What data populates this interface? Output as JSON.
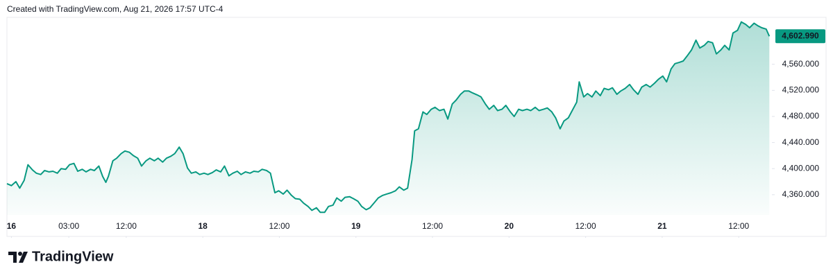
{
  "header": {
    "text": "Created with TradingView.com, Aug 21, 2026 17:57 UTC-4"
  },
  "chart_data": {
    "type": "area",
    "color": "#089981",
    "x": [
      -0.7,
      0,
      0.7,
      1.3,
      2,
      2.6,
      3.3,
      3.9,
      4.6,
      5.2,
      5.9,
      6.5,
      7.2,
      7.8,
      8.5,
      9.1,
      9.8,
      10.4,
      11.1,
      11.7,
      12.4,
      13,
      13.7,
      14.3,
      14.8,
      15.2,
      15.9,
      16.5,
      17.2,
      17.8,
      18.5,
      19.1,
      19.8,
      20.4,
      21.1,
      21.7,
      22.4,
      23,
      23.7,
      24.3,
      25,
      25.6,
      26.3,
      26.9,
      27.6,
      28.2,
      28.9,
      29.5,
      30.2,
      30.8,
      31.5,
      32.1,
      32.8,
      33.4,
      34.1,
      34.7,
      35.4,
      36,
      36.7,
      37.4,
      38,
      38.7,
      39.3,
      40,
      40.6,
      41.3,
      41.9,
      42.6,
      43.2,
      43.9,
      44.5,
      45.2,
      45.8,
      46.5,
      47.1,
      47.8,
      48.4,
      49.1,
      49.7,
      50.4,
      51,
      51.7,
      52.3,
      53,
      53.6,
      54.3,
      54.9,
      55.6,
      56.2,
      56.9,
      57.5,
      58.2,
      58.8,
      59.5,
      60.2,
      60.8,
      61.5,
      62.1,
      62.8,
      63.2,
      63.8,
      64.5,
      65.1,
      65.8,
      66.4,
      67.1,
      67.8,
      68.4,
      69.1,
      69.7,
      70.4,
      71,
      71.7,
      72.3,
      73,
      73.6,
      74.3,
      74.9,
      75.6,
      76.2,
      76.9,
      77.5,
      78.2,
      78.8,
      79.5,
      80.1,
      80.8,
      81.4,
      82.1,
      82.7,
      83.4,
      84,
      84.7,
      85.3,
      86,
      86.6,
      87.3,
      87.9,
      88.6,
      89,
      89.7,
      90.3,
      91,
      91.6,
      92.3,
      92.9,
      93.6,
      94.2,
      94.9,
      95.5,
      96.2,
      96.9,
      97.5,
      98.2,
      98.8,
      99.5,
      100.1,
      100.8,
      101.4,
      102.1,
      102.7,
      103.4,
      104,
      104.7,
      105.3,
      106,
      106.6,
      107.3,
      107.9,
      108.6,
      109.2,
      109.9,
      110.5,
      111.2,
      111.8,
      112.5,
      113.1,
      113.8,
      114.4,
      115.1,
      115.7,
      116.4,
      117,
      117.6,
      118.3,
      118.8
    ],
    "values": [
      4377,
      4374,
      4380,
      4370,
      4382,
      4406,
      4398,
      4393,
      4391,
      4397,
      4395,
      4396,
      4393,
      4400,
      4399,
      4406,
      4408,
      4396,
      4399,
      4395,
      4399,
      4397,
      4404,
      4388,
      4379,
      4388,
      4412,
      4416,
      4423,
      4427,
      4425,
      4420,
      4416,
      4404,
      4412,
      4416,
      4412,
      4416,
      4410,
      4416,
      4419,
      4423,
      4433,
      4423,
      4401,
      4393,
      4395,
      4391,
      4393,
      4391,
      4394,
      4398,
      4395,
      4404,
      4389,
      4393,
      4396,
      4391,
      4395,
      4393,
      4396,
      4395,
      4399,
      4397,
      4393,
      4363,
      4366,
      4361,
      4367,
      4359,
      4354,
      4353,
      4347,
      4342,
      4336,
      4340,
      4333,
      4333,
      4342,
      4344,
      4355,
      4350,
      4356,
      4357,
      4354,
      4350,
      4342,
      4337,
      4340,
      4348,
      4355,
      4359,
      4361,
      4363,
      4366,
      4372,
      4367,
      4370,
      4414,
      4458,
      4461,
      4487,
      4483,
      4491,
      4494,
      4489,
      4491,
      4476,
      4499,
      4505,
      4514,
      4519,
      4519,
      4516,
      4513,
      4510,
      4499,
      4491,
      4497,
      4489,
      4491,
      4497,
      4487,
      4480,
      4491,
      4489,
      4491,
      4489,
      4494,
      4489,
      4491,
      4493,
      4487,
      4478,
      4461,
      4473,
      4478,
      4489,
      4502,
      4533,
      4510,
      4515,
      4510,
      4519,
      4512,
      4523,
      4521,
      4524,
      4514,
      4519,
      4523,
      4529,
      4521,
      4514,
      4525,
      4529,
      4525,
      4531,
      4537,
      4542,
      4533,
      4553,
      4561,
      4563,
      4565,
      4574,
      4582,
      4597,
      4585,
      4589,
      4595,
      4593,
      4576,
      4582,
      4589,
      4582,
      4608,
      4612,
      4625,
      4621,
      4616,
      4623,
      4619,
      4616,
      4614,
      4602.99
    ],
    "last_value_label": "4,602.990",
    "xlim": [
      -0.7,
      119.2
    ],
    "ylim": [
      4329,
      4632
    ],
    "xticks": [
      {
        "value": 0,
        "label": "16"
      },
      {
        "value": 9,
        "label": "03:00"
      },
      {
        "value": 18,
        "label": "12:00"
      },
      {
        "value": 30,
        "label": "18"
      },
      {
        "value": 42,
        "label": "12:00"
      },
      {
        "value": 54,
        "label": "19"
      },
      {
        "value": 66,
        "label": "12:00"
      },
      {
        "value": 78,
        "label": "20"
      },
      {
        "value": 90,
        "label": "12:00"
      },
      {
        "value": 102,
        "label": "21"
      },
      {
        "value": 114,
        "label": "12:00"
      }
    ],
    "yticks": [
      {
        "value": 4360,
        "label": "4,360.000"
      },
      {
        "value": 4400,
        "label": "4,400.000"
      },
      {
        "value": 4440,
        "label": "4,440.000"
      },
      {
        "value": 4480,
        "label": "4,480.000"
      },
      {
        "value": 4520,
        "label": "4,520.000"
      },
      {
        "value": 4560,
        "label": "4,560.000"
      }
    ]
  },
  "footer": {
    "brand": "TradingView"
  }
}
